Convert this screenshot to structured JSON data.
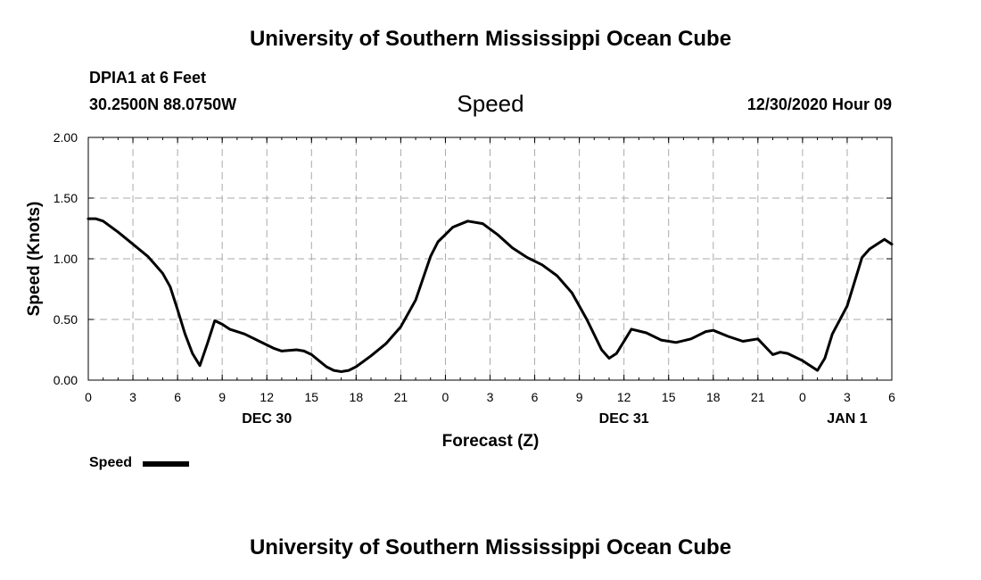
{
  "header": {
    "title": "University of Southern Mississippi Ocean Cube",
    "station": "DPIA1 at 6 Feet",
    "coordinates": "30.2500N 88.0750W",
    "subtitle": "Speed",
    "datetime": "12/30/2020 Hour 09"
  },
  "footer": {
    "title": "University of Southern Mississippi Ocean Cube"
  },
  "legend": {
    "label": "Speed",
    "color": "#000000"
  },
  "chart_data": {
    "type": "line",
    "title": "Speed",
    "xlabel": "Forecast (Z)",
    "ylabel": "Speed (Knots)",
    "xlim": [
      0,
      54
    ],
    "ylim": [
      0,
      2.0
    ],
    "grid": true,
    "legend_placement": "bottom-left",
    "x_ticks": [
      {
        "x": 0,
        "label": "0"
      },
      {
        "x": 3,
        "label": "3"
      },
      {
        "x": 6,
        "label": "6"
      },
      {
        "x": 9,
        "label": "9"
      },
      {
        "x": 12,
        "label": "12"
      },
      {
        "x": 15,
        "label": "15"
      },
      {
        "x": 18,
        "label": "18"
      },
      {
        "x": 21,
        "label": "21"
      },
      {
        "x": 24,
        "label": "0"
      },
      {
        "x": 27,
        "label": "3"
      },
      {
        "x": 30,
        "label": "6"
      },
      {
        "x": 33,
        "label": "9"
      },
      {
        "x": 36,
        "label": "12"
      },
      {
        "x": 39,
        "label": "15"
      },
      {
        "x": 42,
        "label": "18"
      },
      {
        "x": 45,
        "label": "21"
      },
      {
        "x": 48,
        "label": "0"
      },
      {
        "x": 51,
        "label": "3"
      },
      {
        "x": 54,
        "label": "6"
      }
    ],
    "day_labels": [
      {
        "x": 12,
        "label": "DEC 30"
      },
      {
        "x": 36,
        "label": "DEC 31"
      },
      {
        "x": 51,
        "label": "JAN 1"
      }
    ],
    "y_ticks": [
      {
        "y": 0.0,
        "label": "0.00"
      },
      {
        "y": 0.5,
        "label": "0.50"
      },
      {
        "y": 1.0,
        "label": "1.00"
      },
      {
        "y": 1.5,
        "label": "1.50"
      },
      {
        "y": 2.0,
        "label": "2.00"
      }
    ],
    "series": [
      {
        "name": "Speed",
        "color": "#000000",
        "points": [
          [
            0,
            1.33
          ],
          [
            0.5,
            1.33
          ],
          [
            1,
            1.31
          ],
          [
            2,
            1.22
          ],
          [
            3,
            1.12
          ],
          [
            4,
            1.02
          ],
          [
            4.5,
            0.95
          ],
          [
            5,
            0.88
          ],
          [
            5.5,
            0.77
          ],
          [
            6,
            0.58
          ],
          [
            6.5,
            0.38
          ],
          [
            7,
            0.22
          ],
          [
            7.5,
            0.12
          ],
          [
            8,
            0.3
          ],
          [
            8.5,
            0.49
          ],
          [
            9,
            0.46
          ],
          [
            9.5,
            0.42
          ],
          [
            10.5,
            0.38
          ],
          [
            11.5,
            0.32
          ],
          [
            12.5,
            0.26
          ],
          [
            13,
            0.24
          ],
          [
            14,
            0.25
          ],
          [
            14.5,
            0.24
          ],
          [
            15,
            0.21
          ],
          [
            15.5,
            0.16
          ],
          [
            16,
            0.11
          ],
          [
            16.5,
            0.08
          ],
          [
            17,
            0.07
          ],
          [
            17.5,
            0.08
          ],
          [
            18,
            0.11
          ],
          [
            19,
            0.2
          ],
          [
            20,
            0.3
          ],
          [
            21,
            0.44
          ],
          [
            22,
            0.66
          ],
          [
            23,
            1.02
          ],
          [
            23.5,
            1.14
          ],
          [
            24.5,
            1.26
          ],
          [
            25.5,
            1.31
          ],
          [
            26.5,
            1.29
          ],
          [
            27.5,
            1.2
          ],
          [
            28.5,
            1.09
          ],
          [
            29.5,
            1.01
          ],
          [
            30.5,
            0.95
          ],
          [
            31.5,
            0.86
          ],
          [
            32.5,
            0.72
          ],
          [
            33.5,
            0.5
          ],
          [
            34.5,
            0.25
          ],
          [
            35,
            0.18
          ],
          [
            35.5,
            0.22
          ],
          [
            36,
            0.32
          ],
          [
            36.5,
            0.42
          ],
          [
            37.5,
            0.39
          ],
          [
            38.5,
            0.33
          ],
          [
            39.5,
            0.31
          ],
          [
            40.5,
            0.34
          ],
          [
            41.5,
            0.4
          ],
          [
            42,
            0.41
          ],
          [
            43,
            0.36
          ],
          [
            44,
            0.32
          ],
          [
            45,
            0.34
          ],
          [
            46,
            0.21
          ],
          [
            46.5,
            0.23
          ],
          [
            47,
            0.22
          ],
          [
            48,
            0.16
          ],
          [
            49,
            0.08
          ],
          [
            49.5,
            0.18
          ],
          [
            50,
            0.38
          ],
          [
            51,
            0.61
          ],
          [
            52,
            1.01
          ],
          [
            52.5,
            1.08
          ],
          [
            53.5,
            1.16
          ],
          [
            54,
            1.12
          ]
        ]
      }
    ]
  }
}
